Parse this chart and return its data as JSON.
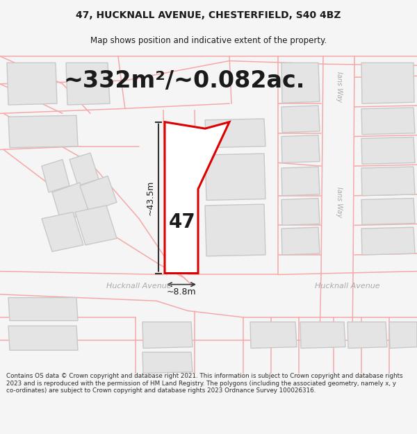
{
  "title_line1": "47, HUCKNALL AVENUE, CHESTERFIELD, S40 4BZ",
  "title_line2": "Map shows position and indicative extent of the property.",
  "area_text": "~332m²/~0.082ac.",
  "property_number": "47",
  "dim_height": "~43.5m",
  "dim_width": "~8.8m",
  "road_label_left": "Hucknall Avenue",
  "road_label_right": "Hucknall Avenue",
  "road_label_upper_right": "Ians Way",
  "road_label_lower_right": "Ians Way",
  "footer_text": "Contains OS data © Crown copyright and database right 2021. This information is subject to Crown copyright and database rights 2023 and is reproduced with the permission of HM Land Registry. The polygons (including the associated geometry, namely x, y co-ordinates) are subject to Crown copyright and database rights 2023 Ordnance Survey 100026316.",
  "bg_color": "#f5f5f5",
  "map_bg": "#f0efef",
  "plot_fill": "#ffffff",
  "plot_edge": "#dd0000",
  "neighbor_fill": "#e4e4e4",
  "neighbor_edge": "#c8c8c8",
  "road_color": "#f5a8a8",
  "dim_line_color": "#333333",
  "text_color_dark": "#1a1a1a",
  "road_text_color": "#aaaaaa",
  "title_fontsize": 10,
  "subtitle_fontsize": 8.5,
  "area_fontsize": 24,
  "property_num_fontsize": 20,
  "dim_fontsize": 9,
  "road_fontsize": 8,
  "footer_fontsize": 6.3
}
